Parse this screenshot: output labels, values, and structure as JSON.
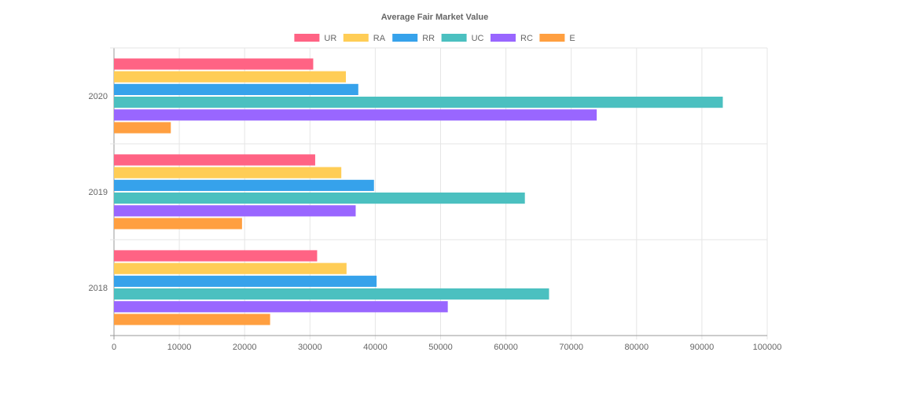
{
  "chart_data": {
    "type": "bar",
    "orientation": "horizontal",
    "title": "Average Fair Market Value",
    "categories": [
      "2020",
      "2019",
      "2018"
    ],
    "series": [
      {
        "name": "UR",
        "color": "#ff6384",
        "values": [
          30500,
          30800,
          31100
        ]
      },
      {
        "name": "RA",
        "color": "#ffcd56",
        "values": [
          35500,
          34800,
          35600
        ]
      },
      {
        "name": "RR",
        "color": "#36a2eb",
        "values": [
          37400,
          39800,
          40200
        ]
      },
      {
        "name": "UC",
        "color": "#4bc0c0",
        "values": [
          93200,
          62900,
          66600
        ]
      },
      {
        "name": "RC",
        "color": "#9966ff",
        "values": [
          73900,
          37000,
          51100
        ]
      },
      {
        "name": "E",
        "color": "#ff9f40",
        "values": [
          8700,
          19600,
          23900
        ]
      }
    ],
    "xlim": [
      0,
      100000
    ],
    "x_ticks": [
      "0",
      "10000",
      "20000",
      "30000",
      "40000",
      "50000",
      "60000",
      "70000",
      "80000",
      "90000",
      "100000"
    ],
    "grid": true,
    "legend_position": "top"
  }
}
